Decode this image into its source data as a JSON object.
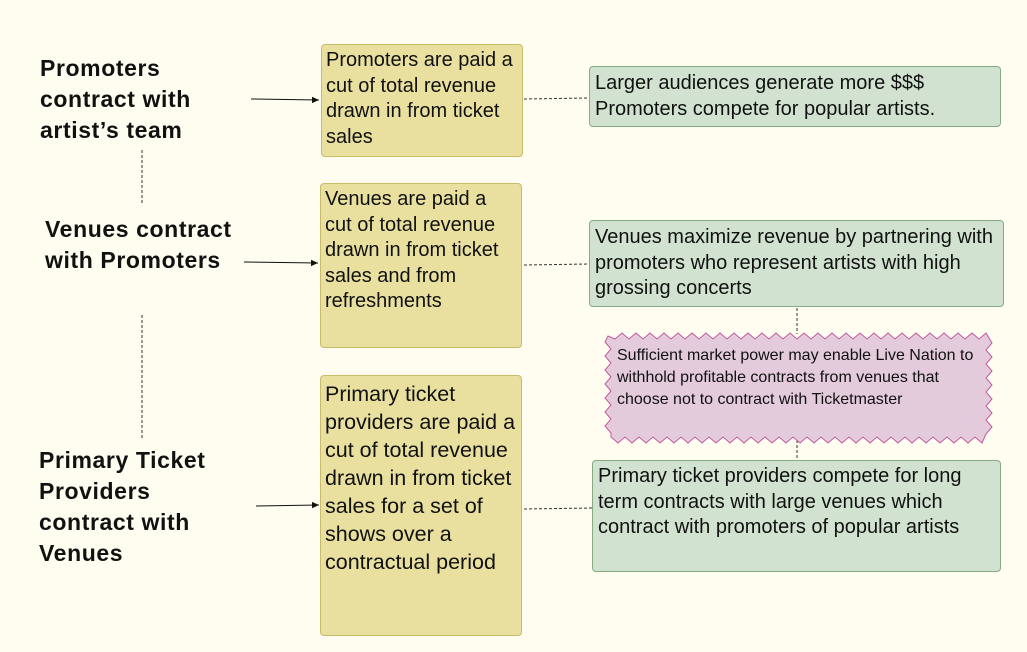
{
  "labels": {
    "promoters": "Promoters contract with artist’s team",
    "venues": "Venues contract with Promoters",
    "ticketing": "Primary Ticket Providers contract with Venues"
  },
  "yellow_boxes": {
    "promoters": "Promoters are paid a cut of total revenue drawn in from ticket sales",
    "venues": "Venues are paid a cut of total revenue drawn in from ticket sales and from refreshments",
    "ticketing": "Primary ticket providers are paid a cut of total revenue drawn in from ticket sales for a set of shows over a contractual period"
  },
  "green_boxes": {
    "promoters": "Larger audiences generate more $$$ Promoters compete for popular artists.",
    "venues": "Venues maximize revenue by partnering with promoters who represent artists with high grossing concerts",
    "ticketing": "Primary ticket providers compete for long term contracts with large venues which contract with promoters of popular artists"
  },
  "note": "Sufficient market power may enable Live Nation to withhold profitable contracts from venues that choose not to contract with Ticketmaster",
  "colors": {
    "background": "#fffdef",
    "yellow_fill": "#e9e0a0",
    "green_fill": "#d1e3d0",
    "note_fill": "#e3cbdc",
    "note_border": "#c45aa0"
  }
}
